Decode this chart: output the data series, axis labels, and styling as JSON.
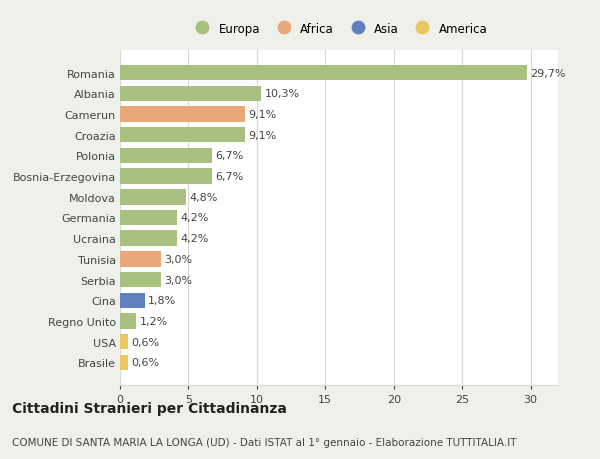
{
  "categories": [
    "Brasile",
    "USA",
    "Regno Unito",
    "Cina",
    "Serbia",
    "Tunisia",
    "Ucraina",
    "Germania",
    "Moldova",
    "Bosnia-Erzegovina",
    "Polonia",
    "Croazia",
    "Camerun",
    "Albania",
    "Romania"
  ],
  "values": [
    0.6,
    0.6,
    1.2,
    1.8,
    3.0,
    3.0,
    4.2,
    4.2,
    4.8,
    6.7,
    6.7,
    9.1,
    9.1,
    10.3,
    29.7
  ],
  "labels": [
    "0,6%",
    "0,6%",
    "1,2%",
    "1,8%",
    "3,0%",
    "3,0%",
    "4,2%",
    "4,2%",
    "4,8%",
    "6,7%",
    "6,7%",
    "9,1%",
    "9,1%",
    "10,3%",
    "29,7%"
  ],
  "continents": [
    "America",
    "America",
    "Europa",
    "Asia",
    "Europa",
    "Africa",
    "Europa",
    "Europa",
    "Europa",
    "Europa",
    "Europa",
    "Europa",
    "Africa",
    "Europa",
    "Europa"
  ],
  "continent_colors": {
    "Europa": "#a8c080",
    "Africa": "#e8a87a",
    "Asia": "#6080c0",
    "America": "#e8c860"
  },
  "legend_order": [
    "Europa",
    "Africa",
    "Asia",
    "America"
  ],
  "title": "Cittadini Stranieri per Cittadinanza",
  "subtitle": "COMUNE DI SANTA MARIA LA LONGA (UD) - Dati ISTAT al 1° gennaio - Elaborazione TUTTITALIA.IT",
  "xlim": [
    0,
    32
  ],
  "xticks": [
    0,
    5,
    10,
    15,
    20,
    25,
    30
  ],
  "background_color": "#f0f0eb",
  "plot_bg_color": "#ffffff",
  "grid_color": "#d8d8d8",
  "text_color": "#444444",
  "title_fontsize": 10,
  "subtitle_fontsize": 7.5,
  "label_fontsize": 8,
  "bar_height": 0.75
}
